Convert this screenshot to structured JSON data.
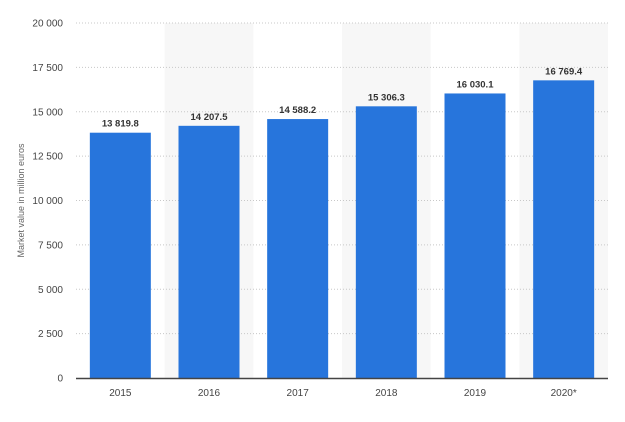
{
  "chart_data": {
    "type": "bar",
    "categories": [
      "2015",
      "2016",
      "2017",
      "2018",
      "2019",
      "2020*"
    ],
    "values": [
      13819.8,
      14207.5,
      14588.2,
      15306.3,
      16030.1,
      16769.4
    ],
    "value_labels": [
      "13 819.8",
      "14 207.5",
      "14 588.2",
      "15 306.3",
      "16 030.1",
      "16 769.4"
    ],
    "xlabel": "",
    "ylabel": "Market value in million euros",
    "ylim": [
      0,
      20000
    ],
    "yticks": [
      0,
      2500,
      5000,
      7500,
      10000,
      12500,
      15000,
      17500,
      20000
    ],
    "ytick_labels": [
      "0",
      "2 500",
      "5 000",
      "7 500",
      "10 000",
      "12 500",
      "15 000",
      "17 500",
      "20 000"
    ],
    "grid": "horizontal dotted",
    "alternating_column_shading": true,
    "colors": {
      "bar": "#2775dc",
      "grid": "#c8c8c8",
      "band": "#f7f7f7",
      "axis": "#444444"
    }
  }
}
